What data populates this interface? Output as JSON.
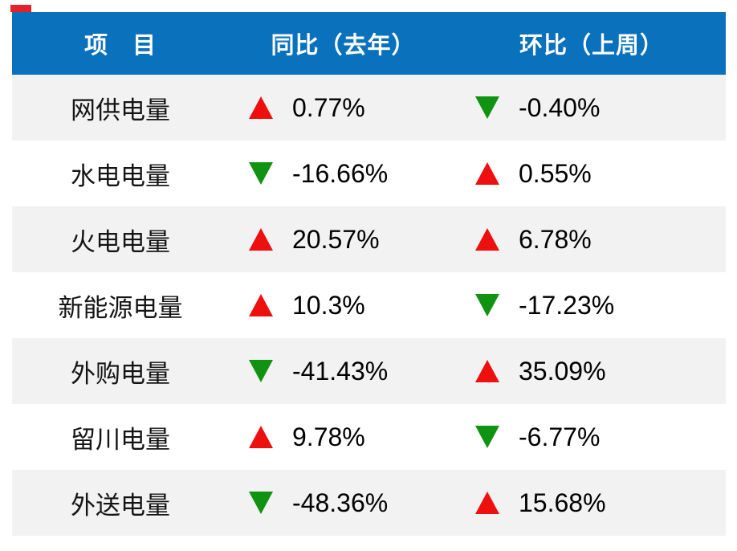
{
  "page": {
    "background": "#ffffff",
    "top_marker_color": "#e8202a"
  },
  "colors": {
    "header_bg": "#0a71bd",
    "header_text": "#ffffff",
    "row_alt_bg": "#f2f2f2",
    "row_bg": "#ffffff",
    "up_triangle": "#ee0f0f",
    "down_triangle": "#0f9310",
    "value_text": "#000000"
  },
  "icons": {
    "up": "up-triangle-icon",
    "down": "down-triangle-icon"
  },
  "chart_data": {
    "type": "table",
    "columns": [
      "项　目",
      "同比（去年）",
      "环比（上周）"
    ],
    "rows": [
      {
        "label": "网供电量",
        "yoy": {
          "dir": "up",
          "value": "0.77%"
        },
        "wow": {
          "dir": "down",
          "value": "-0.40%"
        }
      },
      {
        "label": "水电电量",
        "yoy": {
          "dir": "down",
          "value": "-16.66%"
        },
        "wow": {
          "dir": "up",
          "value": "0.55%"
        }
      },
      {
        "label": "火电电量",
        "yoy": {
          "dir": "up",
          "value": "20.57%"
        },
        "wow": {
          "dir": "up",
          "value": "6.78%"
        }
      },
      {
        "label": "新能源电量",
        "yoy": {
          "dir": "up",
          "value": "10.3%"
        },
        "wow": {
          "dir": "down",
          "value": "-17.23%"
        }
      },
      {
        "label": "外购电量",
        "yoy": {
          "dir": "down",
          "value": "-41.43%"
        },
        "wow": {
          "dir": "up",
          "value": "35.09%"
        }
      },
      {
        "label": "留川电量",
        "yoy": {
          "dir": "up",
          "value": "9.78%"
        },
        "wow": {
          "dir": "down",
          "value": "-6.77%"
        }
      },
      {
        "label": "外送电量",
        "yoy": {
          "dir": "down",
          "value": "-48.36%"
        },
        "wow": {
          "dir": "up",
          "value": "15.68%"
        }
      }
    ]
  }
}
